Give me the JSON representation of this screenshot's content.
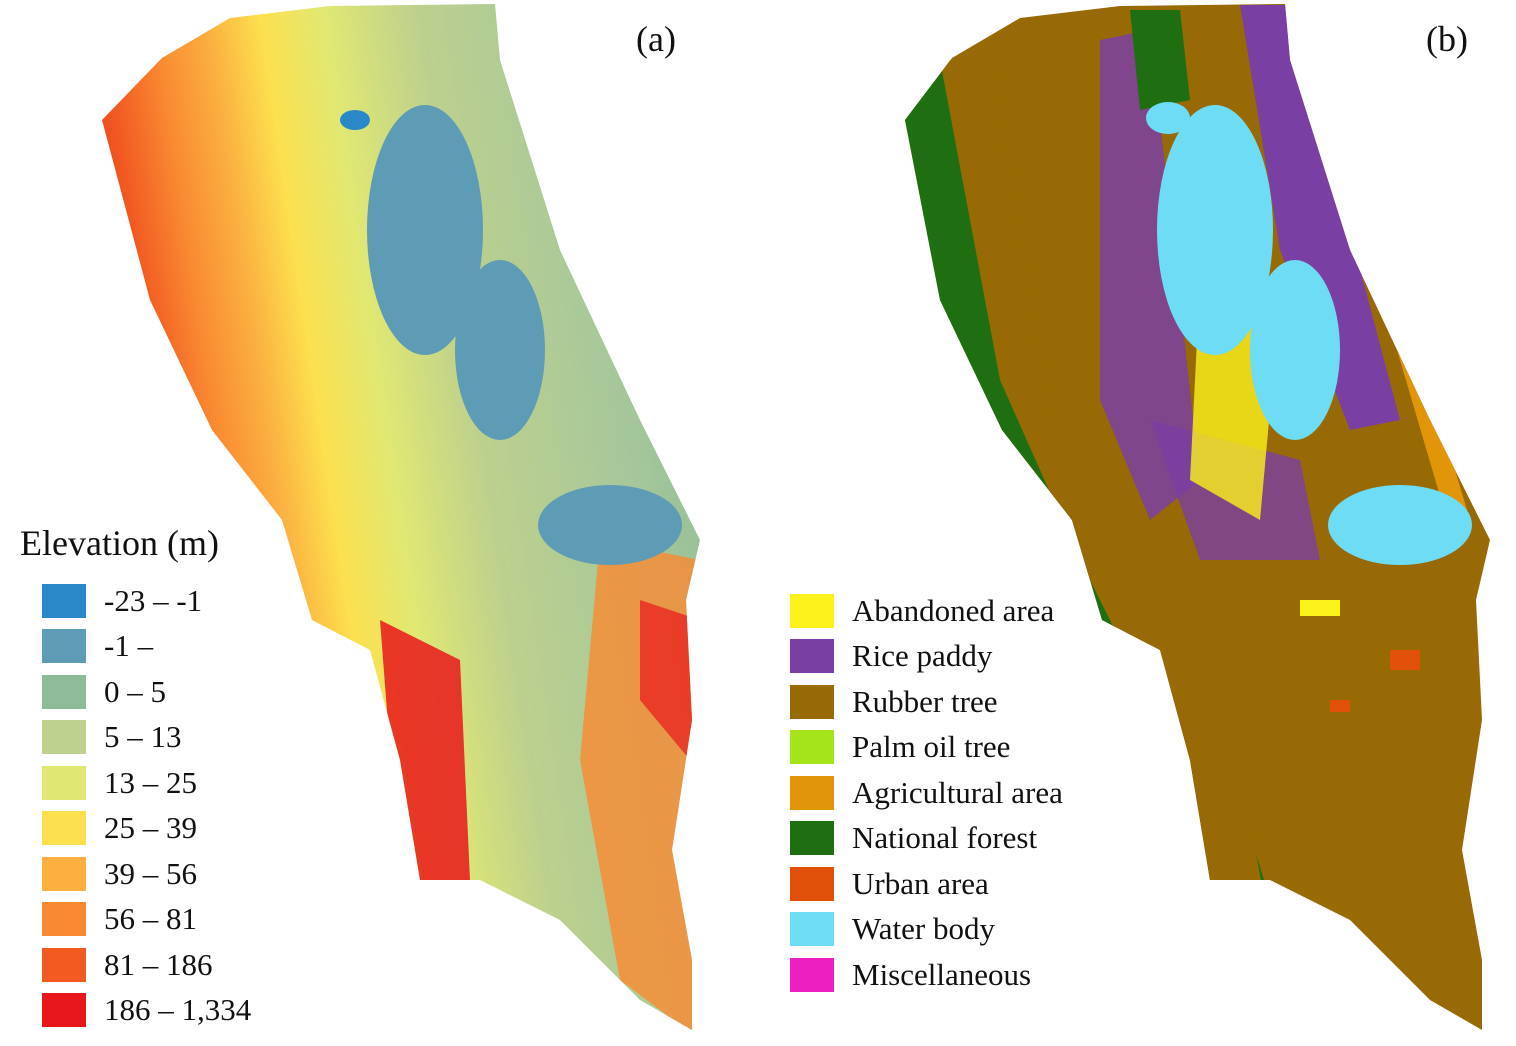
{
  "panels": [
    {
      "label": "(a)"
    },
    {
      "label": "(b)"
    }
  ],
  "elevation_legend": {
    "title": "Elevation (m)",
    "items": [
      {
        "label": "-23 – -1",
        "color": "#2a87c8"
      },
      {
        "label": "-1 –",
        "color": "#5e9bb4"
      },
      {
        "label": "0 – 5",
        "color": "#8fbb9a"
      },
      {
        "label": "5 – 13",
        "color": "#bdd08e"
      },
      {
        "label": "13 – 25",
        "color": "#e0e873"
      },
      {
        "label": "25 – 39",
        "color": "#fce04e"
      },
      {
        "label": "39 – 56",
        "color": "#fbb040"
      },
      {
        "label": "56 – 81",
        "color": "#f98a32"
      },
      {
        "label": "81 – 186",
        "color": "#f25a22"
      },
      {
        "label": "186 – 1,334",
        "color": "#e8171b"
      }
    ]
  },
  "landuse_legend": {
    "items": [
      {
        "label": "Abandoned area",
        "color": "#fbf21c"
      },
      {
        "label": "Rice paddy",
        "color": "#7a3fa3"
      },
      {
        "label": "Rubber tree",
        "color": "#986a05"
      },
      {
        "label": "Palm oil tree",
        "color": "#a5e41a"
      },
      {
        "label": "Agricultural area",
        "color": "#e19509"
      },
      {
        "label": "National forest",
        "color": "#1f6e12"
      },
      {
        "label": "Urban area",
        "color": "#e1510a"
      },
      {
        "label": "Water body",
        "color": "#6fdcf6"
      },
      {
        "label": "Miscellaneous",
        "color": "#ee1fc0"
      }
    ]
  }
}
